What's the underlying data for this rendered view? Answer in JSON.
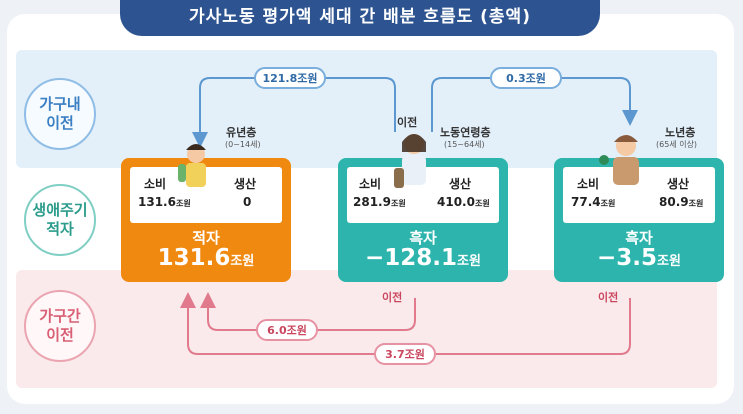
{
  "title": "가사노동 평가액 세대 간 배분 흐름도 (총액)",
  "row_labels": {
    "within": "가구내\n이전",
    "lifecycle": "생애주기\n적자",
    "between": "가구간\n이전"
  },
  "groups": {
    "youth": {
      "name": "유년층",
      "age": "(0~14세)",
      "consumption_label": "소비",
      "consumption_value": "131.6",
      "production_label": "생산",
      "production_value": "0",
      "status": "적자",
      "balance": "131.6"
    },
    "working": {
      "name": "노동연령층",
      "age": "(15~64세)",
      "consumption_label": "소비",
      "consumption_value": "281.9",
      "production_label": "생산",
      "production_value": "410.0",
      "status": "흑자",
      "balance": "−128.1"
    },
    "elderly": {
      "name": "노년층",
      "age": "(65세 이상)",
      "consumption_label": "소비",
      "consumption_value": "77.4",
      "production_label": "생산",
      "production_value": "80.9",
      "status": "흑자",
      "balance": "−3.5"
    }
  },
  "unit": "조원",
  "transfers": {
    "within_to_youth": "121.8조원",
    "within_to_elderly": "0.3조원",
    "between_to_youth": "6.0조원",
    "elderly_to_youth": "3.7조원"
  },
  "transfer_word": "이전",
  "colors": {
    "deficit": "#f0890f",
    "surplus": "#2db5ad",
    "within_band": "#e3f0fa",
    "between_band": "#fbeaec",
    "title_bar": "#2d5491"
  }
}
